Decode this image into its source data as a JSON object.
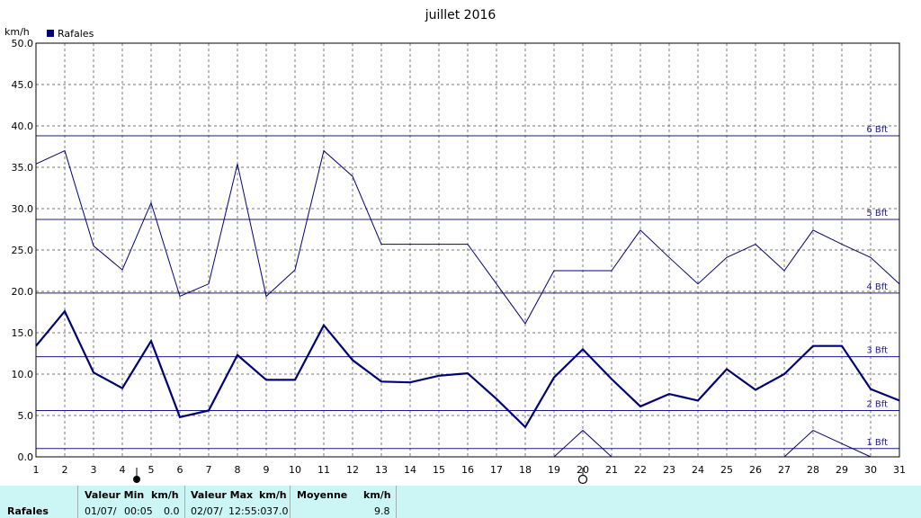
{
  "colors": {
    "series_thick": "#00007a",
    "series_thin": "#00007a",
    "beaufort_line": "#1a1a8c",
    "grid": "#777777",
    "stats_bg": "#ccf6f6"
  },
  "chart_data": {
    "type": "line",
    "title": "juillet 2016",
    "ylabel": "km/h",
    "legend": {
      "label": "Rafales",
      "placement": "top-left"
    },
    "x": [
      1,
      2,
      3,
      4,
      5,
      6,
      7,
      8,
      9,
      10,
      11,
      12,
      13,
      14,
      15,
      16,
      17,
      18,
      19,
      20,
      21,
      22,
      23,
      24,
      25,
      26,
      27,
      28,
      29,
      30,
      31
    ],
    "xticks": [
      "1",
      "2",
      "3",
      "4",
      "5",
      "6",
      "7",
      "8",
      "9",
      "10",
      "11",
      "12",
      "13",
      "14",
      "15",
      "16",
      "17",
      "18",
      "19",
      "20",
      "21",
      "22",
      "23",
      "24",
      "25",
      "26",
      "27",
      "28",
      "29",
      "30",
      "31"
    ],
    "yticks": [
      "0.0",
      "5.0",
      "10.0",
      "15.0",
      "20.0",
      "25.0",
      "30.0",
      "35.0",
      "40.0",
      "45.0",
      "50.0"
    ],
    "ylim": [
      0,
      50
    ],
    "grid": true,
    "series": [
      {
        "name": "Rafales",
        "style": "thick",
        "values": [
          13.4,
          17.6,
          10.2,
          8.3,
          14.0,
          4.8,
          5.6,
          12.3,
          9.3,
          9.3,
          15.9,
          11.7,
          9.1,
          9.0,
          9.8,
          10.1,
          7.0,
          3.6,
          9.6,
          13.0,
          9.4,
          6.1,
          7.6,
          6.8,
          10.6,
          8.1,
          10.0,
          13.4,
          13.4,
          8.2,
          6.8
        ]
      },
      {
        "style": "thin",
        "values": [
          35.4,
          37.0,
          25.5,
          22.6,
          30.7,
          19.4,
          20.9,
          35.4,
          19.4,
          22.6,
          37.0,
          33.9,
          25.7,
          25.7,
          25.7,
          25.7,
          20.9,
          16.1,
          22.5,
          22.5,
          22.5,
          27.4,
          24.1,
          20.9,
          24.1,
          25.7,
          22.5,
          27.4,
          25.7,
          24.1,
          20.9
        ]
      },
      {
        "style": "thin",
        "values": [
          null,
          null,
          null,
          null,
          null,
          null,
          null,
          null,
          null,
          null,
          null,
          null,
          null,
          null,
          null,
          null,
          null,
          null,
          0,
          3.2,
          0,
          null,
          null,
          null,
          null,
          null,
          0,
          3.2,
          1.6,
          0,
          null
        ]
      }
    ],
    "beaufort": [
      {
        "label": "1 Bft",
        "value": 1.0
      },
      {
        "label": "2 Bft",
        "value": 5.6
      },
      {
        "label": "3 Bft",
        "value": 12.1
      },
      {
        "label": "4 Bft",
        "value": 19.8
      },
      {
        "label": "5 Bft",
        "value": 28.7
      },
      {
        "label": "6 Bft",
        "value": 38.8
      }
    ],
    "moon_markers": [
      {
        "day": 4.5,
        "phase": "new"
      },
      {
        "day": 20,
        "phase": "full"
      }
    ]
  },
  "stats": {
    "row_label": "Rafales",
    "min_header": "Valeur Min",
    "min_unit": "km/h",
    "min_date": "01/07/",
    "min_time": "00:05",
    "min_value": "0.0",
    "max_header": "Valeur Max",
    "max_unit": "km/h",
    "max_date": "02/07/",
    "max_time": "12:55:0",
    "max_value": "37.0",
    "avg_header": "Moyenne",
    "avg_unit": "km/h",
    "avg_value": "9.8"
  }
}
